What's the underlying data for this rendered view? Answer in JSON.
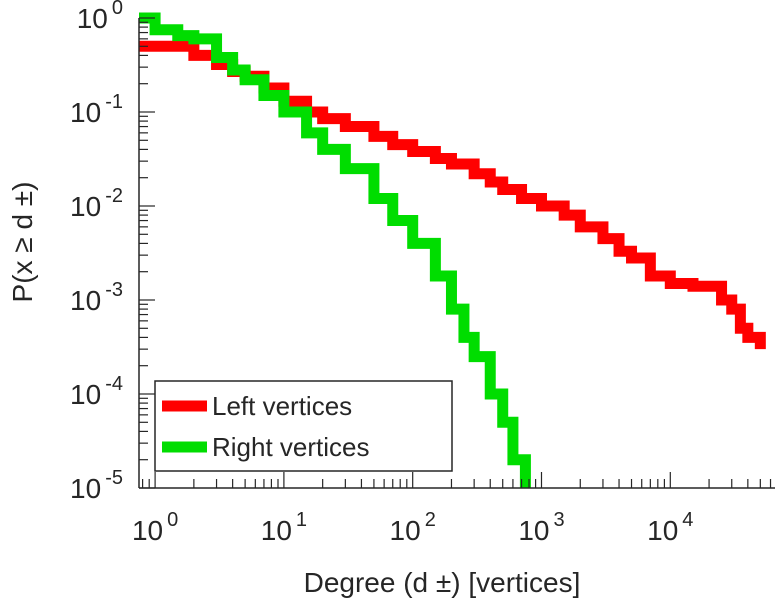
{
  "chart_data": {
    "type": "line",
    "title": "",
    "xlabel": "Degree (d  ±) [vertices]",
    "ylabel": "P(x ≥ d ±)",
    "xscale": "log",
    "yscale": "log",
    "xlim": [
      0.75,
      65000
    ],
    "ylim": [
      1e-05,
      1
    ],
    "x_ticks": [
      {
        "value": 1,
        "base": "10",
        "exp": "0"
      },
      {
        "value": 10,
        "base": "10",
        "exp": "1"
      },
      {
        "value": 100,
        "base": "10",
        "exp": "2"
      },
      {
        "value": 1000,
        "base": "10",
        "exp": "3"
      },
      {
        "value": 10000,
        "base": "10",
        "exp": "4"
      }
    ],
    "y_ticks": [
      {
        "value": 1,
        "base": "10",
        "exp": "0"
      },
      {
        "value": 0.1,
        "base": "10",
        "exp": "-1"
      },
      {
        "value": 0.01,
        "base": "10",
        "exp": "-2"
      },
      {
        "value": 0.001,
        "base": "10",
        "exp": "-3"
      },
      {
        "value": 0.0001,
        "base": "10",
        "exp": "-4"
      },
      {
        "value": 1e-05,
        "base": "10",
        "exp": "-5"
      }
    ],
    "grid": false,
    "legend": {
      "position": "bottom-left"
    },
    "series": [
      {
        "name": "Left vertices",
        "color": "#ff0000",
        "x": [
          0.75,
          1,
          2,
          3,
          4,
          5,
          7,
          10,
          15,
          20,
          30,
          50,
          70,
          100,
          150,
          200,
          300,
          400,
          500,
          700,
          1000,
          1500,
          2000,
          3000,
          4000,
          5000,
          7000,
          10000,
          15000,
          20000,
          25000,
          30000,
          35000,
          40000,
          45000,
          50000
        ],
        "y": [
          0.5,
          0.5,
          0.4,
          0.32,
          0.27,
          0.24,
          0.18,
          0.13,
          0.1,
          0.085,
          0.07,
          0.055,
          0.045,
          0.038,
          0.032,
          0.028,
          0.022,
          0.018,
          0.015,
          0.012,
          0.01,
          0.008,
          0.006,
          0.0045,
          0.0033,
          0.0028,
          0.0018,
          0.0015,
          0.0014,
          0.0014,
          0.001,
          0.0008,
          0.0005,
          0.0004,
          0.0004,
          0.0003
        ]
      },
      {
        "name": "Right vertices",
        "color": "#00dd00",
        "x": [
          0.75,
          1,
          1.5,
          2,
          3,
          4,
          5,
          7,
          10,
          15,
          20,
          30,
          50,
          70,
          100,
          150,
          200,
          250,
          300,
          400,
          500,
          600,
          700,
          750
        ],
        "y": [
          1.0,
          0.75,
          0.65,
          0.6,
          0.38,
          0.28,
          0.22,
          0.15,
          0.1,
          0.06,
          0.04,
          0.025,
          0.012,
          0.007,
          0.004,
          0.0018,
          0.0008,
          0.0004,
          0.00025,
          0.0001,
          5e-05,
          2e-05,
          2e-05,
          1e-05
        ]
      }
    ]
  }
}
